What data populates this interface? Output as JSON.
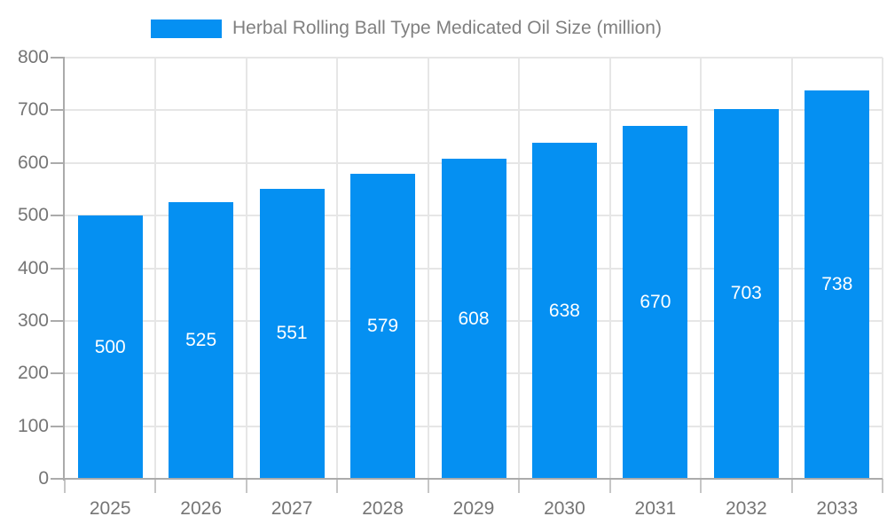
{
  "legend": {
    "label": "Herbal Rolling Ball Type Medicated Oil Size (million)"
  },
  "chart_data": {
    "type": "bar",
    "title": "Herbal Rolling Ball Type Medicated Oil Size (million)",
    "categories": [
      "2025",
      "2026",
      "2027",
      "2028",
      "2029",
      "2030",
      "2031",
      "2032",
      "2033"
    ],
    "values": [
      500,
      525,
      551,
      579,
      608,
      638,
      670,
      703,
      738
    ],
    "series_name": "Herbal Rolling Ball Type Medicated Oil Size (million)",
    "xlabel": "",
    "ylabel": "",
    "ylim": [
      0,
      800
    ],
    "ytick_interval": 100,
    "yticks": [
      0,
      100,
      200,
      300,
      400,
      500,
      600,
      700,
      800
    ],
    "grid": true,
    "legend_position": "top",
    "value_labels_position": "inside-center"
  },
  "colors": {
    "bar": "#0590f2",
    "value_label": "#ffffff",
    "gridline": "#e6e6e6",
    "axis": "#ababab",
    "category_tick": "#c6c6c6",
    "tick_text": "#757575",
    "legend_text": "#808080",
    "background": "#ffffff"
  }
}
